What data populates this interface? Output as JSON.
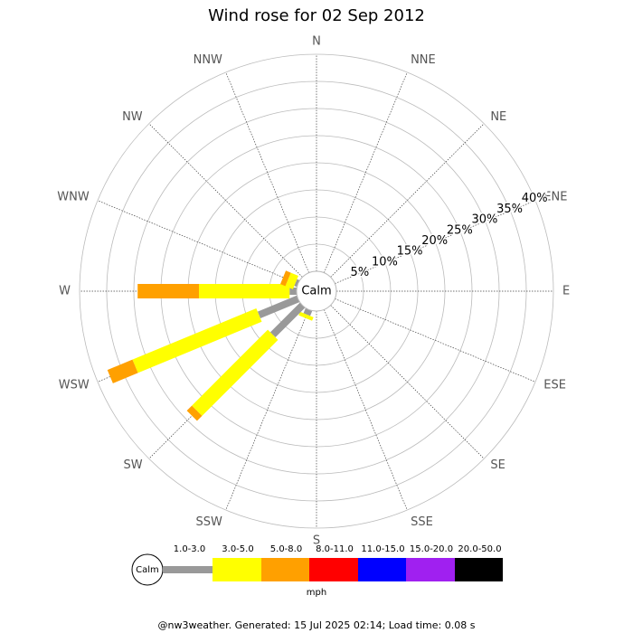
{
  "chart_data": {
    "type": "windrose",
    "title": "Wind rose for 02 Sep 2012",
    "directions": [
      "N",
      "NNE",
      "NE",
      "ENE",
      "E",
      "ESE",
      "SE",
      "SSE",
      "S",
      "SSW",
      "SW",
      "WSW",
      "W",
      "WNW",
      "NW",
      "NNW"
    ],
    "center_label": "Calm",
    "rlim": [
      0,
      40
    ],
    "rticks": [
      {
        "value": 5,
        "label": "5%"
      },
      {
        "value": 10,
        "label": "10%"
      },
      {
        "value": 15,
        "label": "15%"
      },
      {
        "value": 20,
        "label": "20%"
      },
      {
        "value": 25,
        "label": "25%"
      },
      {
        "value": 30,
        "label": "30%"
      },
      {
        "value": 35,
        "label": "35%"
      },
      {
        "value": 40,
        "label": "40%"
      }
    ],
    "series": [
      {
        "name": "1.0-3.0",
        "color": "#999999",
        "values": [
          0,
          0,
          0,
          0,
          0,
          0,
          0,
          0,
          0,
          1.0,
          7.7,
          7.8,
          1.3,
          0.5,
          0,
          0
        ]
      },
      {
        "name": "3.0-5.0",
        "color": "#ffff00",
        "values": [
          0,
          0,
          0,
          0,
          0,
          0,
          0,
          0,
          0,
          0.7,
          19.8,
          24.7,
          16.7,
          1.5,
          0,
          0
        ]
      },
      {
        "name": "5.0-8.0",
        "color": "#ffa000",
        "values": [
          0,
          0,
          0,
          0,
          0,
          0,
          0,
          0,
          0,
          0,
          1.3,
          5.0,
          11.3,
          1.0,
          0,
          0
        ]
      },
      {
        "name": "8.0-11.0",
        "color": "#ff0000",
        "values": [
          0,
          0,
          0,
          0,
          0,
          0,
          0,
          0,
          0,
          0,
          0,
          0,
          0,
          0,
          0,
          0
        ]
      },
      {
        "name": "11.0-15.0",
        "color": "#0000ff",
        "values": [
          0,
          0,
          0,
          0,
          0,
          0,
          0,
          0,
          0,
          0,
          0,
          0,
          0,
          0,
          0,
          0
        ]
      },
      {
        "name": "15.0-20.0",
        "color": "#a020f0",
        "values": [
          0,
          0,
          0,
          0,
          0,
          0,
          0,
          0,
          0,
          0,
          0,
          0,
          0,
          0,
          0,
          0
        ]
      },
      {
        "name": "20.0-50.0",
        "color": "#000000",
        "values": [
          0,
          0,
          0,
          0,
          0,
          0,
          0,
          0,
          0,
          0,
          0,
          0,
          0,
          0,
          0,
          0
        ]
      }
    ],
    "legend_unit": "mph",
    "footer": "@nw3weather. Generated: 15 Jul 2025 02:14; Load time: 0.08 s"
  }
}
